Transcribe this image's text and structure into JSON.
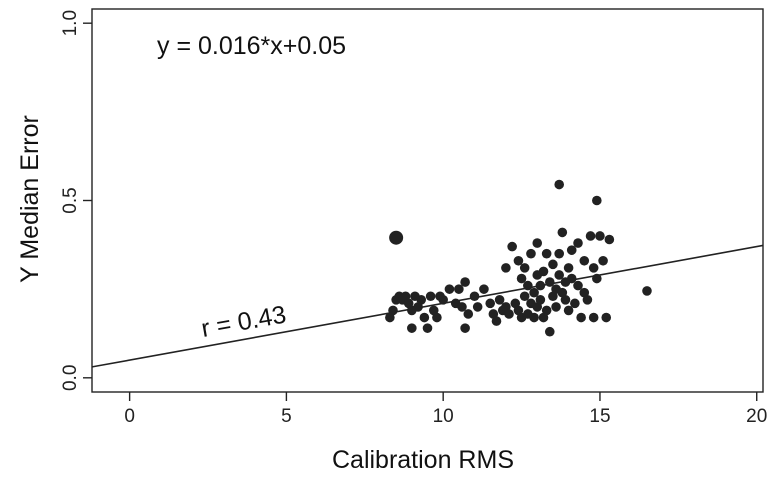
{
  "chart_data": {
    "type": "scatter",
    "title": "",
    "xlabel": "Calibration RMS",
    "ylabel": "Y Median Error",
    "xlim": [
      -1.2,
      20.2
    ],
    "ylim": [
      -0.04,
      1.04
    ],
    "x_ticks": [
      0,
      5,
      10,
      15,
      20
    ],
    "x_tick_labels": [
      "0",
      "5",
      "10",
      "15",
      "20"
    ],
    "y_ticks": [
      0.0,
      0.5,
      1.0
    ],
    "y_tick_labels": [
      "0.0",
      "0.5",
      "1.0"
    ],
    "grid": false,
    "legend": "none",
    "point_color": "#222222",
    "line_color": "#222222",
    "regression": {
      "slope": 0.016,
      "intercept": 0.05
    },
    "annotations": {
      "equation": "y = 0.016*x+0.05",
      "correlation": "r = 0.43"
    },
    "outlier_point": {
      "x": 8.5,
      "y": 0.395
    },
    "points": [
      [
        8.3,
        0.17
      ],
      [
        8.4,
        0.19
      ],
      [
        8.5,
        0.22
      ],
      [
        8.6,
        0.23
      ],
      [
        8.7,
        0.22
      ],
      [
        8.8,
        0.23
      ],
      [
        8.9,
        0.21
      ],
      [
        9.0,
        0.19
      ],
      [
        9.0,
        0.14
      ],
      [
        9.1,
        0.23
      ],
      [
        9.2,
        0.2
      ],
      [
        9.3,
        0.22
      ],
      [
        9.4,
        0.17
      ],
      [
        9.5,
        0.14
      ],
      [
        9.6,
        0.23
      ],
      [
        9.7,
        0.19
      ],
      [
        9.8,
        0.17
      ],
      [
        9.9,
        0.23
      ],
      [
        10.0,
        0.22
      ],
      [
        10.2,
        0.25
      ],
      [
        10.4,
        0.21
      ],
      [
        10.5,
        0.25
      ],
      [
        10.6,
        0.2
      ],
      [
        10.7,
        0.14
      ],
      [
        10.7,
        0.27
      ],
      [
        10.8,
        0.18
      ],
      [
        11.0,
        0.23
      ],
      [
        11.1,
        0.2
      ],
      [
        11.3,
        0.25
      ],
      [
        11.5,
        0.21
      ],
      [
        11.6,
        0.18
      ],
      [
        11.7,
        0.16
      ],
      [
        11.8,
        0.22
      ],
      [
        11.9,
        0.19
      ],
      [
        12.0,
        0.31
      ],
      [
        12.0,
        0.2
      ],
      [
        12.1,
        0.18
      ],
      [
        12.2,
        0.37
      ],
      [
        12.3,
        0.21
      ],
      [
        12.4,
        0.33
      ],
      [
        12.4,
        0.19
      ],
      [
        12.5,
        0.28
      ],
      [
        12.5,
        0.17
      ],
      [
        12.6,
        0.31
      ],
      [
        12.6,
        0.23
      ],
      [
        12.7,
        0.18
      ],
      [
        12.7,
        0.26
      ],
      [
        12.8,
        0.21
      ],
      [
        12.8,
        0.35
      ],
      [
        12.9,
        0.24
      ],
      [
        12.9,
        0.17
      ],
      [
        13.0,
        0.29
      ],
      [
        13.0,
        0.2
      ],
      [
        13.0,
        0.38
      ],
      [
        13.1,
        0.26
      ],
      [
        13.1,
        0.22
      ],
      [
        13.2,
        0.3
      ],
      [
        13.2,
        0.17
      ],
      [
        13.3,
        0.19
      ],
      [
        13.3,
        0.35
      ],
      [
        13.4,
        0.27
      ],
      [
        13.4,
        0.13
      ],
      [
        13.5,
        0.23
      ],
      [
        13.5,
        0.32
      ],
      [
        13.6,
        0.25
      ],
      [
        13.6,
        0.2
      ],
      [
        13.7,
        0.35
      ],
      [
        13.7,
        0.29
      ],
      [
        13.7,
        0.545
      ],
      [
        13.8,
        0.24
      ],
      [
        13.8,
        0.41
      ],
      [
        13.9,
        0.27
      ],
      [
        13.9,
        0.22
      ],
      [
        14.0,
        0.31
      ],
      [
        14.0,
        0.19
      ],
      [
        14.1,
        0.36
      ],
      [
        14.1,
        0.28
      ],
      [
        14.2,
        0.21
      ],
      [
        14.3,
        0.38
      ],
      [
        14.3,
        0.26
      ],
      [
        14.4,
        0.17
      ],
      [
        14.5,
        0.33
      ],
      [
        14.5,
        0.24
      ],
      [
        14.6,
        0.22
      ],
      [
        14.7,
        0.4
      ],
      [
        14.8,
        0.31
      ],
      [
        14.8,
        0.17
      ],
      [
        14.9,
        0.5
      ],
      [
        14.9,
        0.28
      ],
      [
        15.0,
        0.4
      ],
      [
        15.1,
        0.33
      ],
      [
        15.2,
        0.17
      ],
      [
        15.3,
        0.39
      ],
      [
        16.5,
        0.245
      ]
    ]
  }
}
